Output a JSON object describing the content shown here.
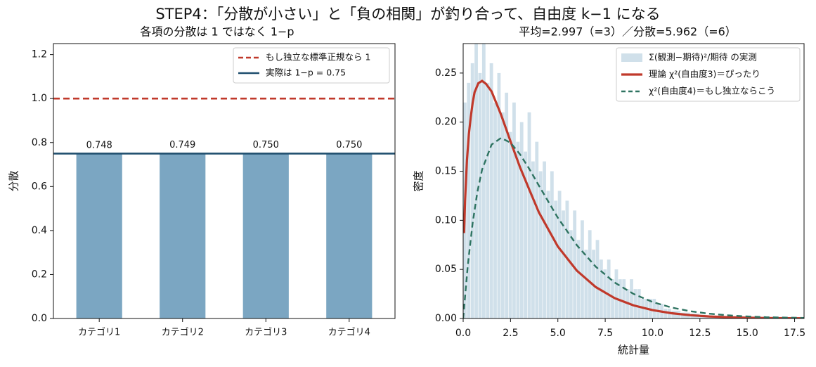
{
  "suptitle": "STEP4：「分散が小さい」と「負の相関」が釣り合って、自由度 k−1 になる",
  "chart_data": [
    {
      "type": "bar",
      "title": "各項の分散は 1 ではなく 1−p",
      "xlabel": "",
      "ylabel": "分散",
      "categories": [
        "カテゴリ1",
        "カテゴリ2",
        "カテゴリ3",
        "カテゴリ4"
      ],
      "values": [
        0.748,
        0.749,
        0.75,
        0.75
      ],
      "value_labels": [
        "0.748",
        "0.749",
        "0.750",
        "0.750"
      ],
      "ylim": [
        0,
        1.25
      ],
      "yticks": [
        0.0,
        0.2,
        0.4,
        0.6,
        0.8,
        1.0,
        1.2
      ],
      "ytick_labels": [
        "0.0",
        "0.2",
        "0.4",
        "0.6",
        "0.8",
        "1.0",
        "1.2"
      ],
      "bar_color": "#7ba6c2",
      "hlines": [
        {
          "y": 1.0,
          "label": "もし独立な標準正規なら 1",
          "color": "#c0392b",
          "style": "dashed"
        },
        {
          "y": 0.75,
          "label": "実際は 1−p = 0.75",
          "color": "#1f4e6e",
          "style": "solid"
        }
      ],
      "legend_loc": "upper right",
      "grid": false
    },
    {
      "type": "line",
      "title": "平均=2.997（=3）／分散=5.962（=6）",
      "xlabel": "統計量",
      "ylabel": "密度",
      "xlim": [
        0,
        18
      ],
      "ylim": [
        0,
        0.28
      ],
      "xticks": [
        0,
        2.5,
        5,
        7.5,
        10,
        12.5,
        15,
        17.5
      ],
      "xtick_labels": [
        "0.0",
        "2.5",
        "5.0",
        "7.5",
        "10.0",
        "12.5",
        "15.0",
        "17.5"
      ],
      "yticks": [
        0,
        0.05,
        0.1,
        0.15,
        0.2,
        0.25
      ],
      "ytick_labels": [
        "0.00",
        "0.05",
        "0.10",
        "0.15",
        "0.20",
        "0.25"
      ],
      "histogram": {
        "name": "Σ(観測−期待)²/期待 の実測",
        "color": "#a9c6d9",
        "bins": [
          [
            0.0,
            0.2,
            0.22
          ],
          [
            0.2,
            0.4,
            0.24
          ],
          [
            0.4,
            0.6,
            0.26
          ],
          [
            0.6,
            0.8,
            0.28
          ],
          [
            0.8,
            1.0,
            0.25
          ],
          [
            1.0,
            1.2,
            0.28
          ],
          [
            1.2,
            1.4,
            0.24
          ],
          [
            1.4,
            1.6,
            0.26
          ],
          [
            1.6,
            1.8,
            0.22
          ],
          [
            1.8,
            2.0,
            0.25
          ],
          [
            2.0,
            2.2,
            0.21
          ],
          [
            2.2,
            2.4,
            0.23
          ],
          [
            2.4,
            2.6,
            0.19
          ],
          [
            2.6,
            2.8,
            0.22
          ],
          [
            2.8,
            3.0,
            0.18
          ],
          [
            3.0,
            3.2,
            0.2
          ],
          [
            3.2,
            3.4,
            0.17
          ],
          [
            3.4,
            3.6,
            0.21
          ],
          [
            3.6,
            3.8,
            0.16
          ],
          [
            3.8,
            4.0,
            0.18
          ],
          [
            4.0,
            4.2,
            0.15
          ],
          [
            4.2,
            4.4,
            0.16
          ],
          [
            4.4,
            4.6,
            0.13
          ],
          [
            4.6,
            4.8,
            0.15
          ],
          [
            4.8,
            5.0,
            0.12
          ],
          [
            5.0,
            5.2,
            0.13
          ],
          [
            5.2,
            5.4,
            0.11
          ],
          [
            5.4,
            5.6,
            0.12
          ],
          [
            5.6,
            5.8,
            0.09
          ],
          [
            5.8,
            6.0,
            0.11
          ],
          [
            6.0,
            6.2,
            0.08
          ],
          [
            6.2,
            6.4,
            0.1
          ],
          [
            6.4,
            6.6,
            0.07
          ],
          [
            6.6,
            6.8,
            0.09
          ],
          [
            6.8,
            7.0,
            0.07
          ],
          [
            7.0,
            7.2,
            0.08
          ],
          [
            7.2,
            7.4,
            0.06
          ],
          [
            7.4,
            7.6,
            0.05
          ],
          [
            7.6,
            7.8,
            0.06
          ],
          [
            7.8,
            8.0,
            0.04
          ],
          [
            8.0,
            8.2,
            0.05
          ],
          [
            8.2,
            8.4,
            0.04
          ],
          [
            8.4,
            8.6,
            0.04
          ],
          [
            8.6,
            8.8,
            0.03
          ],
          [
            8.8,
            9.0,
            0.04
          ],
          [
            9.0,
            9.2,
            0.03
          ],
          [
            9.2,
            9.4,
            0.03
          ],
          [
            9.4,
            9.6,
            0.02
          ],
          [
            9.6,
            9.8,
            0.02
          ],
          [
            9.8,
            10.0,
            0.02
          ],
          [
            10.0,
            10.2,
            0.02
          ],
          [
            10.2,
            10.4,
            0.015
          ],
          [
            10.4,
            10.6,
            0.015
          ],
          [
            10.6,
            10.8,
            0.01
          ],
          [
            10.8,
            11.0,
            0.01
          ],
          [
            11.0,
            11.5,
            0.008
          ],
          [
            11.5,
            12.0,
            0.006
          ],
          [
            12.0,
            12.5,
            0.005
          ],
          [
            12.5,
            13.0,
            0.003
          ],
          [
            13.0,
            13.5,
            0.002
          ],
          [
            13.5,
            14.0,
            0.002
          ],
          [
            14.0,
            15.0,
            0.001
          ],
          [
            15.0,
            16.0,
            0.001
          ]
        ]
      },
      "series": [
        {
          "name": "理論 χ²(自由度3)＝ぴったり",
          "color": "#c0392b",
          "style": "solid",
          "x": [
            0.05,
            0.1,
            0.2,
            0.3,
            0.4,
            0.5,
            0.6,
            0.8,
            1.0,
            1.2,
            1.5,
            2.0,
            2.5,
            3.0,
            3.5,
            4.0,
            5.0,
            6.0,
            7.0,
            8.0,
            9.0,
            10.0,
            11.0,
            12.0,
            13.0,
            14.0,
            15.0,
            16.0,
            17.0,
            18.0
          ],
          "y": [
            0.087,
            0.12,
            0.1614,
            0.1878,
            0.2052,
            0.2197,
            0.2304,
            0.2397,
            0.242,
            0.2391,
            0.2313,
            0.2076,
            0.1804,
            0.1542,
            0.1309,
            0.108,
            0.0733,
            0.0488,
            0.032,
            0.0207,
            0.0133,
            0.0085,
            0.0054,
            0.0034,
            0.0021,
            0.0013,
            0.0008,
            0.0005,
            0.0003,
            0.0002
          ]
        },
        {
          "name": "χ²(自由度4)＝もし独立ならこう",
          "color": "#2e7361",
          "style": "dashed",
          "x": [
            0.0,
            0.25,
            0.5,
            0.75,
            1.0,
            1.5,
            2.0,
            2.5,
            3.0,
            3.5,
            4.0,
            5.0,
            6.0,
            7.0,
            8.0,
            9.0,
            10.0,
            11.0,
            12.0,
            13.0,
            14.0,
            15.0,
            16.0,
            17.0,
            18.0
          ],
          "y": [
            0.0,
            0.0551,
            0.0974,
            0.1289,
            0.1516,
            0.1771,
            0.1839,
            0.179,
            0.1673,
            0.1521,
            0.1353,
            0.1026,
            0.0747,
            0.0528,
            0.0366,
            0.025,
            0.0168,
            0.0112,
            0.0074,
            0.0049,
            0.0032,
            0.0021,
            0.0013,
            0.0009,
            0.0006
          ]
        }
      ],
      "legend_loc": "upper right",
      "grid": false
    }
  ]
}
